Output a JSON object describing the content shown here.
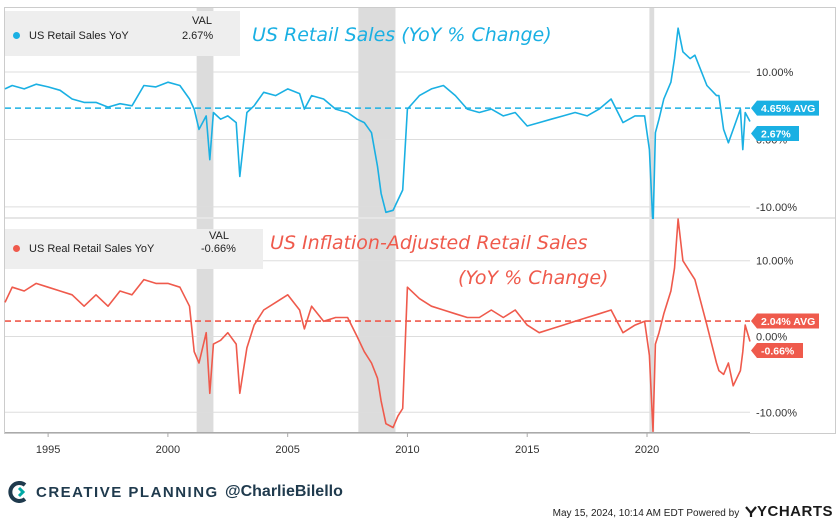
{
  "colors": {
    "nominal": "#1ab0e3",
    "real": "#ef5a4c",
    "recession": "#dcdcdc",
    "brand": "#1f3a4d",
    "brand_accent": "#00a9a5"
  },
  "top_panel": {
    "legend_name": "US Retail Sales YoY",
    "val_header": "VAL",
    "val": "2.67%",
    "title": "US Retail Sales (YoY % Change)",
    "avg_label": "4.65% AVG",
    "last_label": "2.67%"
  },
  "bottom_panel": {
    "legend_name": "US Real Retail Sales YoY",
    "val_header": "VAL",
    "val": "-0.66%",
    "title_line1": "US Inflation-Adjusted Retail Sales",
    "title_line2": "(YoY % Change)",
    "avg_label": "2.04% AVG",
    "last_label": "-0.66%"
  },
  "footer": {
    "brand": "CREATIVE PLANNING",
    "handle": "@CharlieBilello",
    "timestamp": "May 15, 2024, 10:14 AM EDT Powered by",
    "powered_brand": "YCHARTS"
  },
  "chart_data": [
    {
      "type": "line",
      "title": "US Retail Sales (YoY % Change)",
      "xlabel": "",
      "ylabel": "",
      "x_range": [
        1993.2,
        2024.3
      ],
      "ylim": [
        -11.5,
        19.5
      ],
      "yticks": [
        10,
        0,
        -10
      ],
      "ytick_labels": [
        "10.00%",
        "0.00%",
        "-10.00%"
      ],
      "xticks": [
        1995,
        2000,
        2005,
        2010,
        2015,
        2020
      ],
      "xtick_labels": [
        "1995",
        "2000",
        "2005",
        "2010",
        "2015",
        "2020"
      ],
      "average": 4.65,
      "last_value": 2.67,
      "grid": "horizontal",
      "recessions": [
        [
          2001.2,
          2001.9
        ],
        [
          2007.95,
          2009.5
        ],
        [
          2020.1,
          2020.3
        ]
      ],
      "series": [
        {
          "name": "US Retail Sales YoY",
          "x": [
            1993.2,
            1993.5,
            1994.0,
            1994.5,
            1995.0,
            1995.5,
            1996.0,
            1996.5,
            1997.0,
            1997.5,
            1998.0,
            1998.5,
            1999.0,
            1999.5,
            2000.0,
            2000.5,
            2000.9,
            2001.1,
            2001.3,
            2001.6,
            2001.75,
            2001.9,
            2002.2,
            2002.5,
            2002.85,
            2003.0,
            2003.3,
            2003.6,
            2004.0,
            2004.5,
            2005.0,
            2005.5,
            2005.7,
            2006.0,
            2006.5,
            2007.0,
            2007.5,
            2007.9,
            2008.2,
            2008.5,
            2008.75,
            2008.9,
            2009.1,
            2009.4,
            2009.6,
            2009.8,
            2010.0,
            2010.5,
            2011.0,
            2011.5,
            2012.0,
            2012.5,
            2013.0,
            2013.5,
            2014.0,
            2014.5,
            2015.0,
            2015.5,
            2016.0,
            2016.5,
            2017.0,
            2017.5,
            2018.0,
            2018.5,
            2019.0,
            2019.5,
            2019.9,
            2020.1,
            2020.25,
            2020.35,
            2020.5,
            2020.7,
            2021.0,
            2021.15,
            2021.3,
            2021.5,
            2021.8,
            2022.0,
            2022.5,
            2022.9,
            2023.0,
            2023.2,
            2023.4,
            2023.6,
            2023.9,
            2024.0,
            2024.1,
            2024.3
          ],
          "y": [
            7.5,
            8.0,
            7.5,
            8.2,
            7.8,
            7.3,
            6.0,
            5.5,
            5.5,
            4.8,
            5.3,
            5.0,
            8.0,
            7.8,
            8.5,
            8.0,
            6.0,
            4.5,
            1.5,
            3.5,
            -3.0,
            4.0,
            3.0,
            3.5,
            2.5,
            -5.5,
            4.0,
            5.0,
            7.0,
            6.5,
            7.5,
            6.8,
            4.5,
            6.5,
            6.0,
            4.5,
            4.0,
            3.0,
            2.5,
            1.0,
            -4.0,
            -8.0,
            -10.8,
            -10.5,
            -9.0,
            -7.5,
            4.5,
            6.5,
            7.5,
            8.0,
            6.5,
            4.5,
            4.0,
            4.5,
            3.5,
            4.0,
            2.0,
            2.5,
            3.0,
            3.5,
            4.0,
            3.5,
            4.5,
            6.0,
            2.5,
            3.5,
            3.5,
            -1.5,
            -13.0,
            1.0,
            3.0,
            6.0,
            8.5,
            12.0,
            16.5,
            13.0,
            12.0,
            12.5,
            8.0,
            6.5,
            6.5,
            1.5,
            -0.5,
            1.5,
            4.5,
            -1.5,
            4.0,
            2.67
          ]
        }
      ]
    },
    {
      "type": "line",
      "title": "US Inflation-Adjusted Retail Sales (YoY % Change)",
      "xlabel": "",
      "ylabel": "",
      "x_range": [
        1993.2,
        2024.3
      ],
      "ylim": [
        -12.6,
        15.5
      ],
      "yticks": [
        10,
        0,
        -10
      ],
      "ytick_labels": [
        "10.00%",
        "0.00%",
        "-10.00%"
      ],
      "xticks": [
        1995,
        2000,
        2005,
        2010,
        2015,
        2020
      ],
      "xtick_labels": [
        "1995",
        "2000",
        "2005",
        "2010",
        "2015",
        "2020"
      ],
      "average": 2.04,
      "last_value": -0.66,
      "grid": "horizontal",
      "recessions": [
        [
          2001.2,
          2001.9
        ],
        [
          2007.95,
          2009.5
        ],
        [
          2020.1,
          2020.3
        ]
      ],
      "series": [
        {
          "name": "US Real Retail Sales YoY",
          "x": [
            1993.2,
            1993.5,
            1994.0,
            1994.5,
            1995.0,
            1995.5,
            1996.0,
            1996.5,
            1997.0,
            1997.5,
            1998.0,
            1998.5,
            1999.0,
            1999.5,
            2000.0,
            2000.5,
            2000.9,
            2001.1,
            2001.3,
            2001.6,
            2001.75,
            2001.9,
            2002.2,
            2002.5,
            2002.85,
            2003.0,
            2003.3,
            2003.6,
            2004.0,
            2004.5,
            2005.0,
            2005.5,
            2005.7,
            2006.0,
            2006.5,
            2007.0,
            2007.5,
            2007.9,
            2008.2,
            2008.5,
            2008.75,
            2008.9,
            2009.1,
            2009.4,
            2009.6,
            2009.8,
            2010.0,
            2010.5,
            2011.0,
            2011.5,
            2012.0,
            2012.5,
            2013.0,
            2013.5,
            2014.0,
            2014.5,
            2015.0,
            2015.5,
            2016.0,
            2016.5,
            2017.0,
            2017.5,
            2018.0,
            2018.5,
            2019.0,
            2019.5,
            2019.9,
            2020.1,
            2020.25,
            2020.35,
            2020.5,
            2020.7,
            2021.0,
            2021.15,
            2021.3,
            2021.5,
            2021.8,
            2022.0,
            2022.5,
            2022.9,
            2023.0,
            2023.2,
            2023.4,
            2023.6,
            2023.9,
            2024.0,
            2024.1,
            2024.3
          ],
          "y": [
            4.5,
            6.5,
            6.0,
            7.0,
            6.5,
            6.0,
            5.5,
            4.0,
            5.5,
            4.0,
            6.0,
            5.5,
            7.5,
            7.0,
            7.0,
            6.5,
            4.0,
            -2.0,
            -3.5,
            0.5,
            -7.5,
            -1.0,
            -0.5,
            0.5,
            -1.0,
            -7.5,
            -1.5,
            1.5,
            3.5,
            4.5,
            5.5,
            3.5,
            1.0,
            4.0,
            2.0,
            2.5,
            2.5,
            0.0,
            -2.0,
            -3.5,
            -5.5,
            -8.5,
            -11.5,
            -12.0,
            -10.5,
            -9.5,
            6.5,
            5.0,
            4.0,
            3.5,
            3.0,
            2.5,
            2.5,
            3.5,
            2.5,
            3.5,
            1.5,
            0.5,
            1.0,
            1.5,
            2.0,
            2.5,
            3.0,
            3.5,
            0.5,
            1.5,
            2.0,
            -2.5,
            -12.5,
            -1.0,
            0.5,
            3.0,
            6.0,
            9.0,
            15.5,
            10.0,
            8.5,
            7.5,
            1.5,
            -3.5,
            -4.5,
            -5.0,
            -3.5,
            -6.5,
            -4.5,
            -2.0,
            1.5,
            -0.66
          ]
        }
      ]
    }
  ]
}
